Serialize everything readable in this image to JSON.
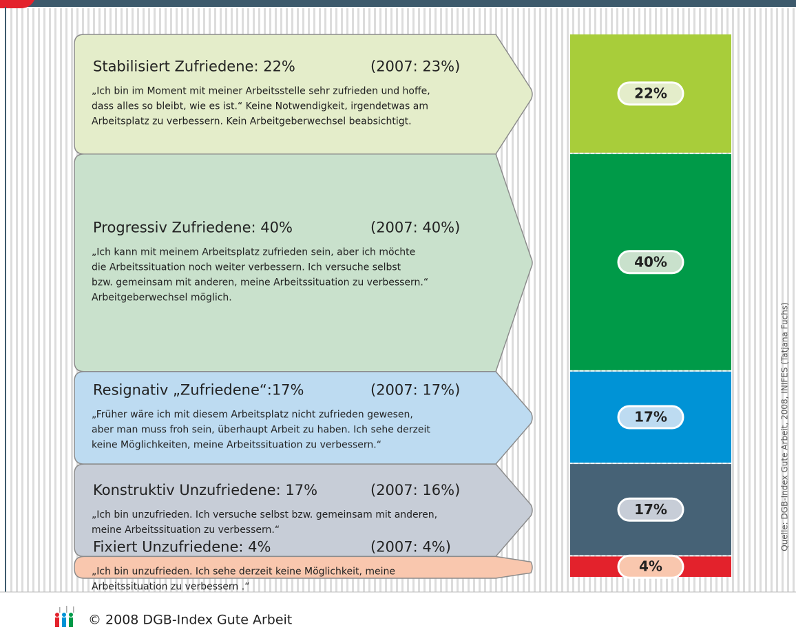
{
  "chart_data": {
    "type": "stacked-bar",
    "categories": [
      "Stabilisiert Zufriedene: 22%",
      "Progressiv Zufriedene: 40%",
      "Resignativ „Zufriedene“:17%",
      "Konstruktiv Unzufriedene: 17%",
      "Fixiert Unzufriedene: 4%"
    ],
    "prior_labels": [
      "(2007: 23%)",
      "(2007: 40%)",
      "(2007: 17%)",
      "(2007: 16%)",
      "(2007: 4%)"
    ],
    "descriptions": [
      [
        "„Ich bin im Moment mit meiner Arbeitsstelle sehr zufrieden und hoffe,",
        " dass alles so bleibt, wie es ist.“ Keine Notwendigkeit, irgendetwas am",
        "Arbeitsplatz zu verbessern. Kein Arbeitgeberwechsel beabsichtigt."
      ],
      [
        "„Ich kann mit meinem Arbeitsplatz zufrieden sein, aber ich möchte",
        " die Arbeitssituation noch weiter verbessern. Ich versuche selbst",
        "bzw. gemeinsam mit anderen, meine Arbeitssituation zu verbessern.“",
        "Arbeitgeberwechsel möglich."
      ],
      [
        "„Früher wäre ich mit diesem Arbeitsplatz nicht zufrieden gewesen,",
        " aber man muss froh sein, überhaupt Arbeit zu haben. Ich sehe derzeit",
        "keine Möglichkeiten, meine Arbeitssituation zu verbessern.“"
      ],
      [
        "„Ich bin unzufrieden. Ich versuche selbst bzw. gemeinsam mit anderen,",
        " meine Arbeitssituation zu verbessern.“"
      ],
      [
        "„Ich bin unzufrieden. Ich sehe derzeit keine Möglichkeit, meine",
        "Arbeitssituation zu verbessern .“"
      ]
    ],
    "values": [
      22,
      40,
      17,
      17,
      4
    ],
    "value_labels": [
      "22%",
      "40%",
      "17%",
      "17%",
      "4%"
    ],
    "colors": [
      "#a8cd3a",
      "#009a48",
      "#0093d6",
      "#466276",
      "#e3222c"
    ],
    "card_colors": [
      "#e4edca",
      "#c9e1cc",
      "#bddbf1",
      "#c7cdd7",
      "#f9c7ae"
    ],
    "ylim": [
      0,
      100
    ]
  },
  "source": "Quelle: DGB-Index Gute Arbeit, 2008, INIFES (Tatjana Fuchs)",
  "footer": "© 2008 DGB-Index Gute Arbeit"
}
